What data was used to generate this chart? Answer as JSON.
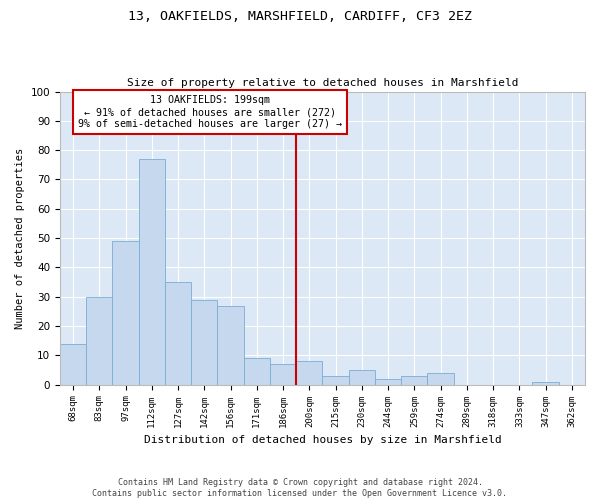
{
  "title1": "13, OAKFIELDS, MARSHFIELD, CARDIFF, CF3 2EZ",
  "title2": "Size of property relative to detached houses in Marshfield",
  "xlabel": "Distribution of detached houses by size in Marshfield",
  "ylabel": "Number of detached properties",
  "footer": "Contains HM Land Registry data © Crown copyright and database right 2024.\nContains public sector information licensed under the Open Government Licence v3.0.",
  "bin_labels": [
    "68sqm",
    "83sqm",
    "97sqm",
    "112sqm",
    "127sqm",
    "142sqm",
    "156sqm",
    "171sqm",
    "186sqm",
    "200sqm",
    "215sqm",
    "230sqm",
    "244sqm",
    "259sqm",
    "274sqm",
    "289sqm",
    "318sqm",
    "333sqm",
    "347sqm",
    "362sqm"
  ],
  "bar_values": [
    14,
    30,
    49,
    77,
    35,
    29,
    27,
    9,
    7,
    8,
    3,
    5,
    2,
    3,
    4,
    0,
    0,
    0,
    1,
    0
  ],
  "bar_color": "#c5d8ee",
  "bar_edge_color": "#7aacd4",
  "vline_color": "#cc0000",
  "annotation_text": "13 OAKFIELDS: 199sqm\n← 91% of detached houses are smaller (272)\n9% of semi-detached houses are larger (27) →",
  "annotation_box_color": "#ffffff",
  "annotation_box_edge": "#cc0000",
  "ylim": [
    0,
    100
  ],
  "yticks": [
    0,
    10,
    20,
    30,
    40,
    50,
    60,
    70,
    80,
    90,
    100
  ],
  "plot_bg": "#dce8f5",
  "fig_bg": "#ffffff"
}
